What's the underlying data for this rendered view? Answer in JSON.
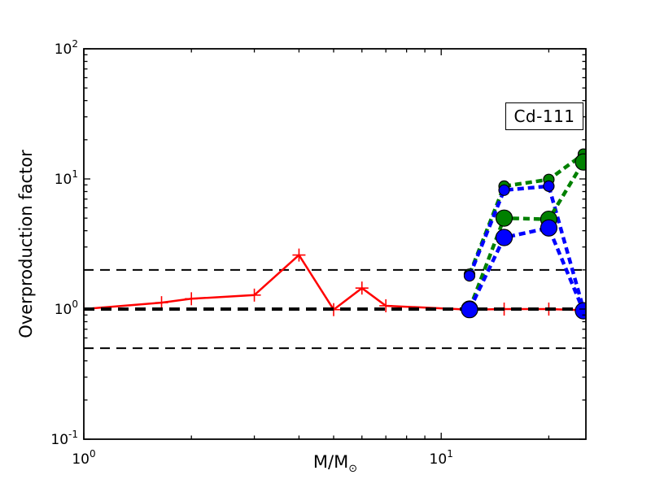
{
  "figure": {
    "annotation": "Cd-111",
    "xlabel": {
      "main": "M/M",
      "subscript": "⊙"
    },
    "ylabel": "Overproduction factor"
  },
  "axes": {
    "x": {
      "scale": "log",
      "min": 1,
      "max": 25.4,
      "major_ticks": [
        {
          "value": 1,
          "label_base": "10",
          "label_exp": "0"
        },
        {
          "value": 10,
          "label_base": "10",
          "label_exp": "1"
        }
      ],
      "minor_ticks": [
        2,
        3,
        4,
        5,
        6,
        7,
        8,
        9,
        20
      ]
    },
    "y": {
      "scale": "log",
      "min": 0.1,
      "max": 100,
      "major_ticks": [
        {
          "value": 100,
          "label_base": "10",
          "label_exp": "2"
        },
        {
          "value": 10,
          "label_base": "10",
          "label_exp": "1"
        },
        {
          "value": 1,
          "label_base": "10",
          "label_exp": "0"
        },
        {
          "value": 0.1,
          "label_base": "10",
          "label_exp": "-1"
        }
      ],
      "minor_ticks": [
        0.2,
        0.3,
        0.4,
        0.5,
        0.6,
        0.7,
        0.8,
        0.9,
        2,
        3,
        4,
        5,
        6,
        7,
        8,
        9,
        20,
        30,
        40,
        50,
        60,
        70,
        80,
        90
      ]
    }
  },
  "reference_lines": [
    {
      "y": 2,
      "color": "#000000",
      "style": "thin-dashed"
    },
    {
      "y": 0.5,
      "color": "#000000",
      "style": "thin-dashed"
    },
    {
      "y": 1,
      "color": "#000000",
      "style": "bold-dashed"
    }
  ],
  "chart_data": {
    "type": "line",
    "title": "Cd-111",
    "xlabel": "M/M☉",
    "ylabel": "Overproduction factor",
    "xlim": [
      1,
      25.4
    ],
    "ylim": [
      0.1,
      100
    ],
    "x_scale": "log",
    "y_scale": "log",
    "grid": false,
    "legend": "none",
    "series": [
      {
        "name": "red solid line, plus markers (low/intermediate mass models)",
        "color": "#ff0000",
        "line": "solid",
        "marker": "plus",
        "marker_size": "small",
        "x": [
          1,
          1.65,
          2,
          3,
          4,
          5,
          6,
          7,
          12,
          15,
          20,
          25
        ],
        "y": [
          1.0,
          1.12,
          1.2,
          1.28,
          2.6,
          0.99,
          1.45,
          1.06,
          0.99,
          1.0,
          1.0,
          0.98
        ]
      },
      {
        "name": "green dashed line, small circles",
        "color": "#008000",
        "line": "dashed",
        "marker": "circle",
        "marker_size": "small",
        "x": [
          12,
          15,
          20,
          25
        ],
        "y": [
          1.85,
          8.8,
          9.9,
          15.5
        ]
      },
      {
        "name": "blue dashed line, small circles",
        "color": "#0000ff",
        "line": "dashed",
        "marker": "circle",
        "marker_size": "small",
        "x": [
          12,
          15,
          20,
          25
        ],
        "y": [
          1.8,
          8.2,
          8.8,
          1.0
        ]
      },
      {
        "name": "green dashed line, large circles",
        "color": "#008000",
        "line": "dashed",
        "marker": "circle",
        "marker_size": "large",
        "x": [
          12,
          15,
          20,
          25
        ],
        "y": [
          1.0,
          5.0,
          4.9,
          13.5
        ]
      },
      {
        "name": "blue dashed line, large circles",
        "color": "#0000ff",
        "line": "dashed",
        "marker": "circle",
        "marker_size": "large",
        "x": [
          12,
          15,
          20,
          25
        ],
        "y": [
          0.99,
          3.55,
          4.2,
          0.97
        ]
      }
    ]
  }
}
